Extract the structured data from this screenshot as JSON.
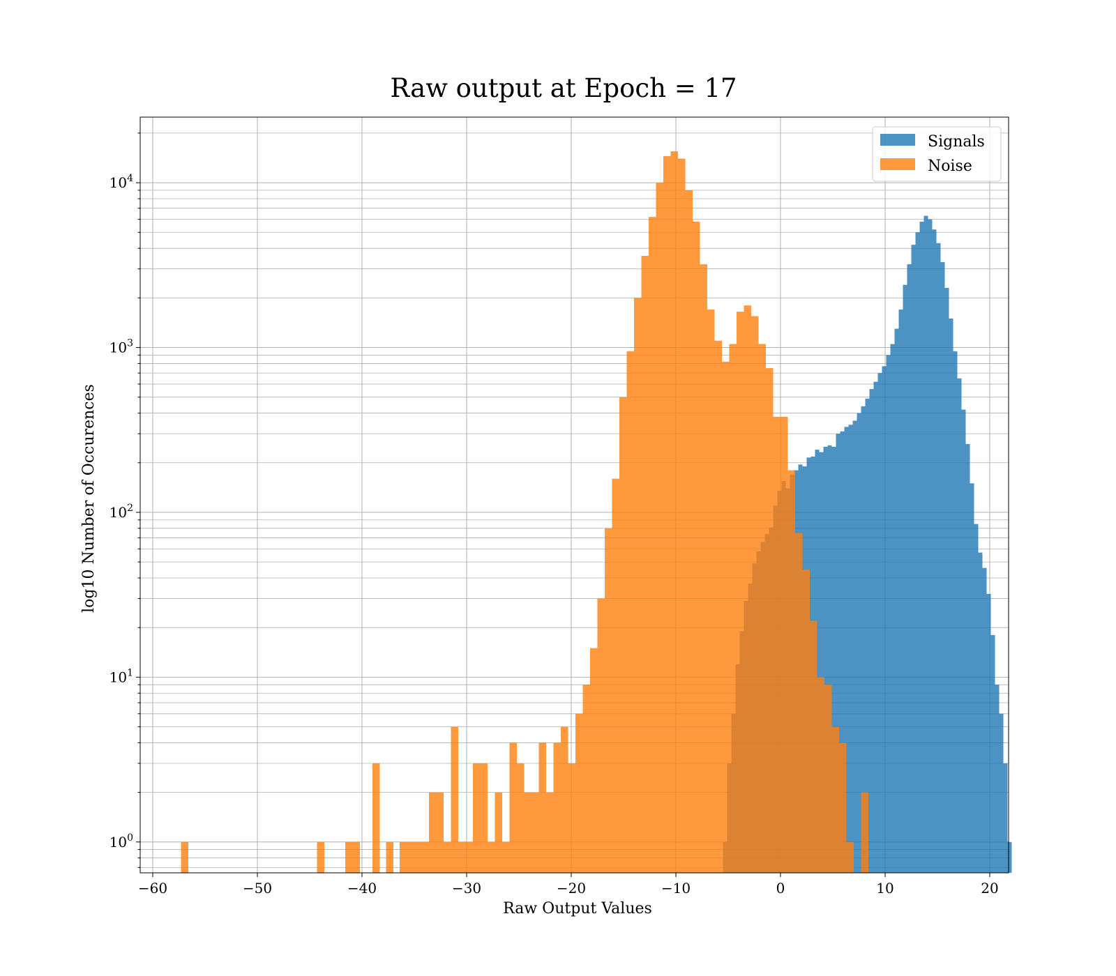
{
  "chart_data": {
    "type": "bar",
    "title": "Raw output at Epoch = 17",
    "xlabel": "Raw Output Values",
    "ylabel": "log10 Number of Occurences",
    "xlim": [
      -61.2,
      21.8
    ],
    "ylim": [
      0.65,
      25000
    ],
    "yscale": "log",
    "grid": true,
    "legend_position": "top-right",
    "x_ticks": [
      {
        "value": -60,
        "label": "−60"
      },
      {
        "value": -50,
        "label": "−50"
      },
      {
        "value": -40,
        "label": "−40"
      },
      {
        "value": -30,
        "label": "−30"
      },
      {
        "value": -20,
        "label": "−20"
      },
      {
        "value": -10,
        "label": "−10"
      },
      {
        "value": 0,
        "label": "0"
      },
      {
        "value": 10,
        "label": "10"
      },
      {
        "value": 20,
        "label": "20"
      }
    ],
    "y_ticks": [
      {
        "value": 1,
        "base": "10",
        "exp": "0"
      },
      {
        "value": 10,
        "base": "10",
        "exp": "1"
      },
      {
        "value": 100,
        "base": "10",
        "exp": "2"
      },
      {
        "value": 1000,
        "base": "10",
        "exp": "3"
      },
      {
        "value": 10000,
        "base": "10",
        "exp": "4"
      }
    ],
    "series": [
      {
        "name": "Signals",
        "color": "#1f77b4",
        "alpha": 0.8,
        "bins": [
          [
            -5.5,
            -5.1,
            1
          ],
          [
            -5.1,
            -4.7,
            3
          ],
          [
            -4.7,
            -4.3,
            6
          ],
          [
            -4.3,
            -3.9,
            12
          ],
          [
            -3.9,
            -3.5,
            19
          ],
          [
            -3.5,
            -3.1,
            29
          ],
          [
            -3.1,
            -2.7,
            37
          ],
          [
            -2.7,
            -2.3,
            49
          ],
          [
            -2.3,
            -1.9,
            58
          ],
          [
            -1.9,
            -1.5,
            66
          ],
          [
            -1.5,
            -1.1,
            74
          ],
          [
            -1.1,
            -0.7,
            81
          ],
          [
            -0.7,
            -0.3,
            110
          ],
          [
            -0.3,
            0.1,
            135
          ],
          [
            0.1,
            0.5,
            155
          ],
          [
            0.5,
            0.9,
            140
          ],
          [
            0.9,
            1.3,
            170
          ],
          [
            1.3,
            1.7,
            180
          ],
          [
            1.7,
            2.1,
            195
          ],
          [
            2.1,
            2.5,
            190
          ],
          [
            2.5,
            2.9,
            215
          ],
          [
            2.9,
            3.3,
            218
          ],
          [
            3.3,
            3.7,
            240
          ],
          [
            3.7,
            4.1,
            232
          ],
          [
            4.1,
            4.5,
            250
          ],
          [
            4.5,
            4.9,
            255
          ],
          [
            4.9,
            5.3,
            250
          ],
          [
            5.3,
            5.7,
            300
          ],
          [
            5.7,
            6.1,
            310
          ],
          [
            6.1,
            6.5,
            330
          ],
          [
            6.5,
            6.9,
            340
          ],
          [
            6.9,
            7.3,
            360
          ],
          [
            7.3,
            7.7,
            400
          ],
          [
            7.7,
            8.1,
            440
          ],
          [
            8.1,
            8.5,
            490
          ],
          [
            8.5,
            8.9,
            560
          ],
          [
            8.9,
            9.3,
            620
          ],
          [
            9.3,
            9.7,
            700
          ],
          [
            9.7,
            10.1,
            770
          ],
          [
            10.1,
            10.5,
            900
          ],
          [
            10.5,
            10.9,
            1050
          ],
          [
            10.9,
            11.3,
            1300
          ],
          [
            11.3,
            11.7,
            1700
          ],
          [
            11.7,
            12.1,
            2400
          ],
          [
            12.1,
            12.5,
            3200
          ],
          [
            12.5,
            12.9,
            4200
          ],
          [
            12.9,
            13.3,
            5000
          ],
          [
            13.3,
            13.7,
            5800
          ],
          [
            13.7,
            14.1,
            6300
          ],
          [
            14.1,
            14.5,
            6000
          ],
          [
            14.5,
            14.9,
            5200
          ],
          [
            14.9,
            15.3,
            4300
          ],
          [
            15.3,
            15.7,
            3300
          ],
          [
            15.7,
            16.1,
            2300
          ],
          [
            16.1,
            16.5,
            1500
          ],
          [
            16.5,
            16.9,
            950
          ],
          [
            16.9,
            17.3,
            650
          ],
          [
            17.3,
            17.7,
            420
          ],
          [
            17.7,
            18.1,
            260
          ],
          [
            18.1,
            18.5,
            150
          ],
          [
            18.5,
            18.9,
            85
          ],
          [
            18.9,
            19.3,
            57
          ],
          [
            19.3,
            19.7,
            46
          ],
          [
            19.7,
            20.1,
            32
          ],
          [
            20.1,
            20.5,
            18
          ],
          [
            20.5,
            20.9,
            9
          ],
          [
            20.9,
            21.3,
            6
          ],
          [
            21.3,
            21.7,
            3
          ],
          [
            21.7,
            22.1,
            1
          ]
        ]
      },
      {
        "name": "Noise",
        "color": "#ff7f0e",
        "alpha": 0.8,
        "bins": [
          [
            -57.3,
            -56.6,
            1
          ],
          [
            -44.3,
            -43.6,
            1
          ],
          [
            -41.6,
            -40.9,
            1
          ],
          [
            -40.9,
            -40.2,
            1
          ],
          [
            -39.0,
            -38.3,
            3
          ],
          [
            -37.7,
            -37.0,
            1
          ],
          [
            -36.4,
            -35.7,
            1
          ],
          [
            -35.7,
            -35.0,
            1
          ],
          [
            -35.0,
            -34.3,
            1
          ],
          [
            -34.3,
            -33.6,
            1
          ],
          [
            -33.6,
            -32.9,
            2
          ],
          [
            -32.9,
            -32.2,
            2
          ],
          [
            -32.2,
            -31.5,
            1
          ],
          [
            -31.5,
            -30.8,
            5
          ],
          [
            -30.8,
            -30.1,
            1
          ],
          [
            -30.1,
            -29.4,
            1
          ],
          [
            -29.4,
            -28.7,
            3
          ],
          [
            -28.7,
            -28.0,
            3
          ],
          [
            -28.0,
            -27.3,
            1
          ],
          [
            -27.3,
            -26.6,
            2
          ],
          [
            -26.6,
            -25.9,
            1
          ],
          [
            -25.9,
            -25.2,
            4
          ],
          [
            -25.2,
            -24.5,
            3
          ],
          [
            -24.5,
            -23.8,
            2
          ],
          [
            -23.8,
            -23.1,
            2
          ],
          [
            -23.1,
            -22.4,
            4
          ],
          [
            -22.4,
            -21.7,
            2
          ],
          [
            -21.7,
            -21.0,
            4
          ],
          [
            -21.0,
            -20.3,
            5
          ],
          [
            -20.3,
            -19.6,
            3
          ],
          [
            -19.6,
            -18.9,
            6
          ],
          [
            -18.9,
            -18.2,
            9
          ],
          [
            -18.2,
            -17.5,
            15
          ],
          [
            -17.5,
            -16.8,
            30
          ],
          [
            -16.8,
            -16.1,
            80
          ],
          [
            -16.1,
            -15.4,
            160
          ],
          [
            -15.4,
            -14.7,
            500
          ],
          [
            -14.7,
            -14.0,
            950
          ],
          [
            -14.0,
            -13.3,
            2000
          ],
          [
            -13.3,
            -12.6,
            3600
          ],
          [
            -12.6,
            -11.9,
            6200
          ],
          [
            -11.9,
            -11.2,
            10000
          ],
          [
            -11.2,
            -10.5,
            14500
          ],
          [
            -10.5,
            -9.8,
            15500
          ],
          [
            -9.8,
            -9.1,
            14000
          ],
          [
            -9.1,
            -8.4,
            9000
          ],
          [
            -8.4,
            -7.7,
            5800
          ],
          [
            -7.7,
            -7.0,
            3200
          ],
          [
            -7.0,
            -6.3,
            1700
          ],
          [
            -6.3,
            -5.6,
            1100
          ],
          [
            -5.6,
            -4.9,
            820
          ],
          [
            -4.9,
            -4.2,
            1050
          ],
          [
            -4.2,
            -3.5,
            1650
          ],
          [
            -3.5,
            -2.8,
            1800
          ],
          [
            -2.8,
            -2.1,
            1550
          ],
          [
            -2.1,
            -1.4,
            1050
          ],
          [
            -1.4,
            -0.7,
            750
          ],
          [
            -0.7,
            0.0,
            380
          ],
          [
            0.0,
            0.7,
            380
          ],
          [
            0.7,
            1.4,
            180
          ],
          [
            1.4,
            2.1,
            75
          ],
          [
            2.1,
            2.8,
            45
          ],
          [
            2.8,
            3.5,
            22
          ],
          [
            3.5,
            4.2,
            10
          ],
          [
            4.2,
            4.9,
            9
          ],
          [
            4.9,
            5.6,
            5
          ],
          [
            5.6,
            6.3,
            4
          ],
          [
            6.3,
            7.0,
            1
          ],
          [
            7.7,
            8.4,
            2
          ]
        ]
      }
    ]
  }
}
